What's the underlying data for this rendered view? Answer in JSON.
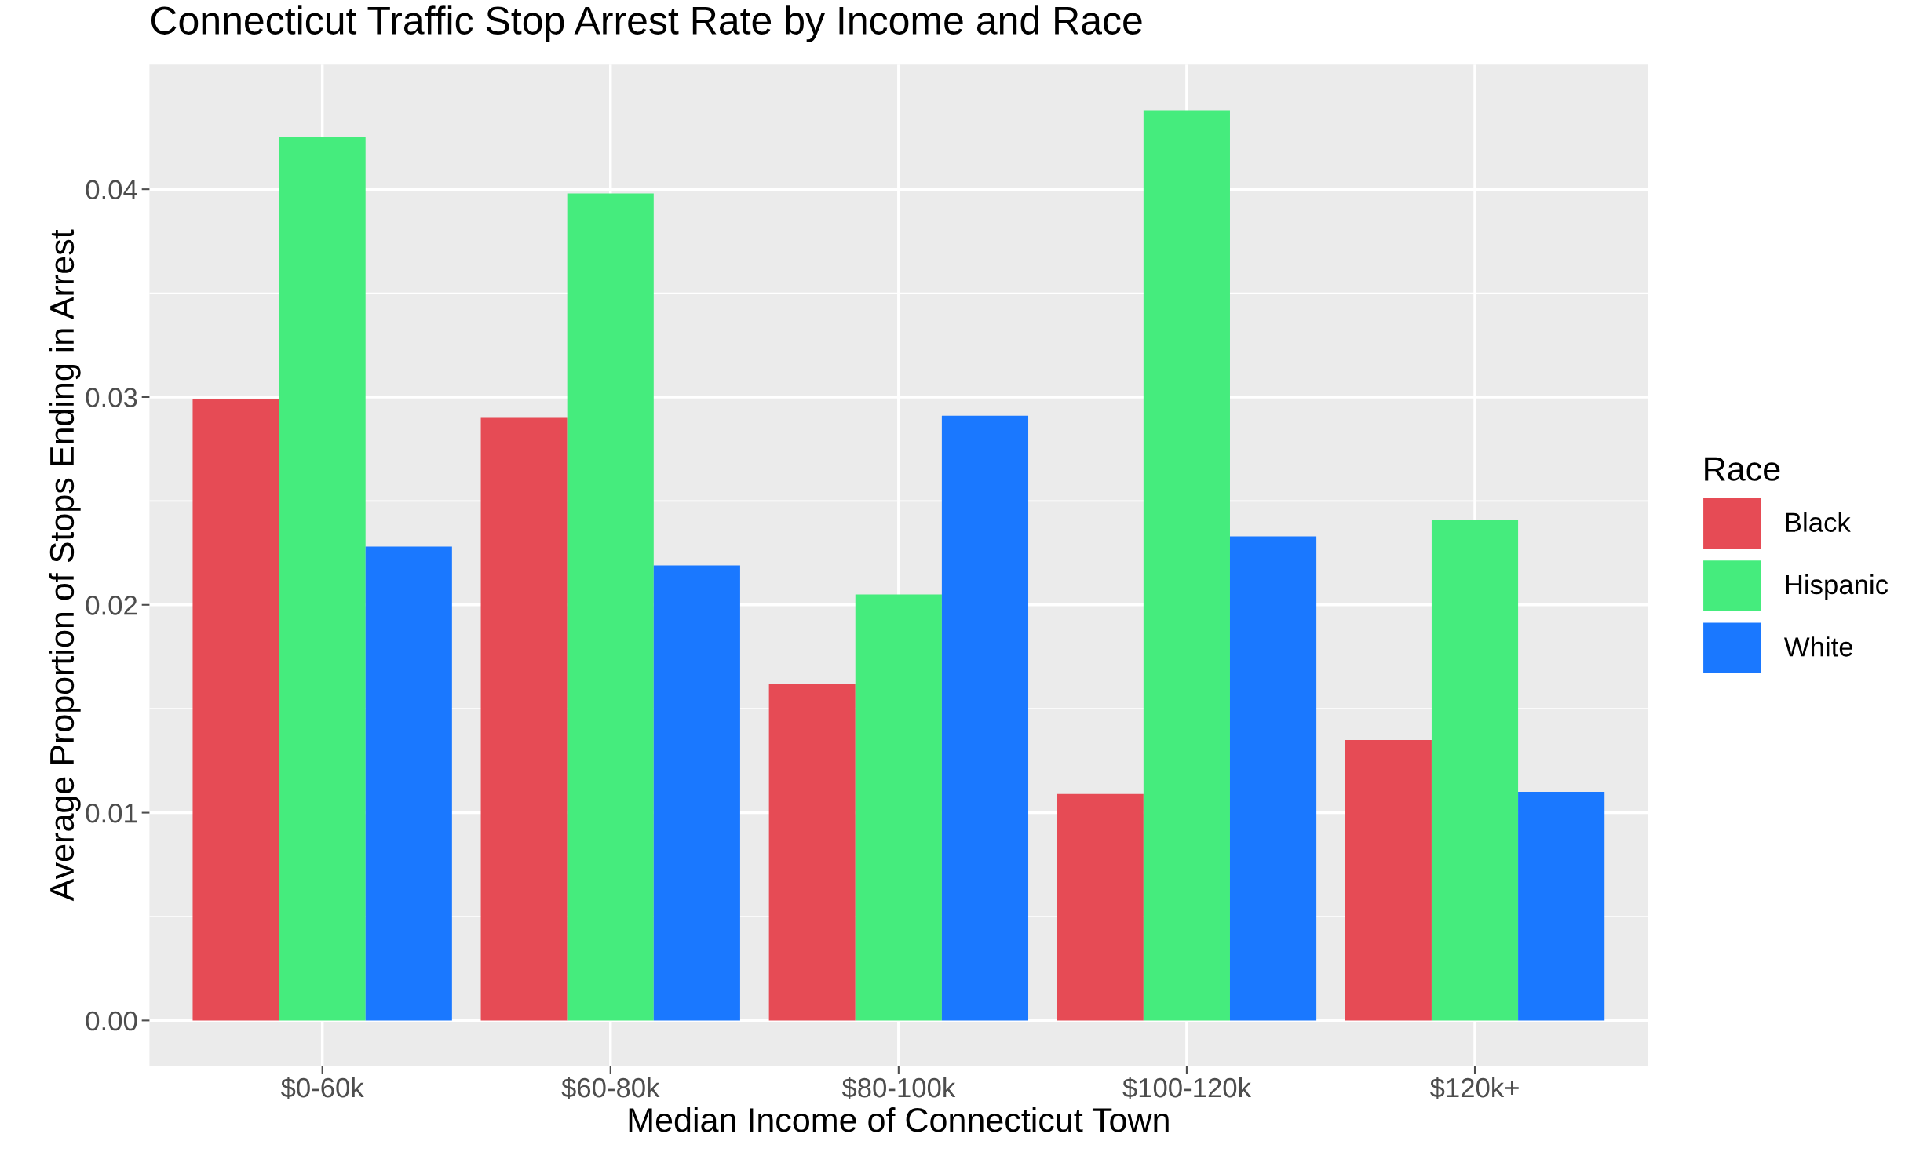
{
  "chart_data": {
    "type": "bar",
    "title": "Connecticut Traffic Stop Arrest Rate by Income and Race",
    "xlabel": "Median Income of Connecticut Town",
    "ylabel": "Average Proportion of Stops Ending in Arrest",
    "legend_title": "Race",
    "categories": [
      "$0-60k",
      "$60-80k",
      "$80-100k",
      "$100-120k",
      "$120k+"
    ],
    "series": [
      {
        "name": "Black",
        "color": "#e64b55",
        "values": [
          0.0299,
          0.029,
          0.0162,
          0.0109,
          0.0135
        ]
      },
      {
        "name": "Hispanic",
        "color": "#45ec7d",
        "values": [
          0.0425,
          0.0398,
          0.0205,
          0.0438,
          0.0241
        ]
      },
      {
        "name": "White",
        "color": "#1a78ff",
        "values": [
          0.0228,
          0.0219,
          0.0291,
          0.0233,
          0.011
        ]
      }
    ],
    "ylim": [
      -0.00219,
      0.046
    ],
    "yticks": [
      {
        "value": 0,
        "label": "0.00"
      },
      {
        "value": 0.01,
        "label": "0.01"
      },
      {
        "value": 0.02,
        "label": "0.02"
      },
      {
        "value": 0.03,
        "label": "0.03"
      },
      {
        "value": 0.04,
        "label": "0.04"
      }
    ],
    "grid": true,
    "legend": "right"
  }
}
